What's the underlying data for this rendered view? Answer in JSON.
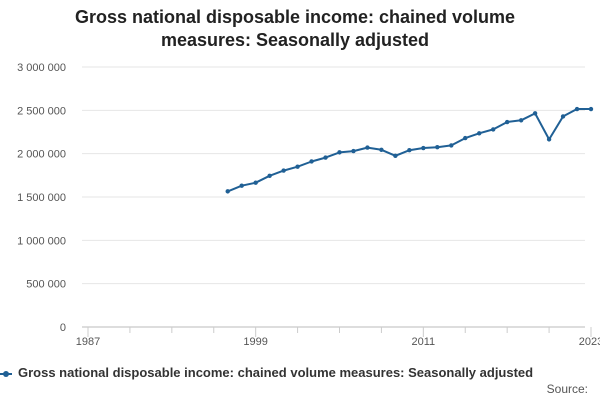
{
  "chart_data": {
    "type": "line",
    "title": "Gross national disposable income: chained volume measures: Seasonally adjusted",
    "title_lines": [
      "Gross national disposable income: chained volume",
      "measures: Seasonally adjusted"
    ],
    "xlabel": "",
    "ylabel": "",
    "xlim": [
      1987,
      2023
    ],
    "ylim": [
      0,
      3000000
    ],
    "x_ticks": [
      1987,
      1999,
      2011,
      2023
    ],
    "x_tick_labels": [
      "1987",
      "1999",
      "2011",
      "2023"
    ],
    "y_ticks": [
      0,
      500000,
      1000000,
      1500000,
      2000000,
      2500000,
      3000000
    ],
    "y_tick_labels": [
      "0",
      "500 000",
      "1 000 000",
      "1 500 000",
      "2 000 000",
      "2 500 000",
      "3 000 000"
    ],
    "grid": true,
    "legend": "bottom",
    "series": [
      {
        "name": "Gross national disposable income: chained volume measures: Seasonally adjusted",
        "color": "#206095",
        "x": [
          1997,
          1998,
          1999,
          2000,
          2001,
          2002,
          2003,
          2004,
          2005,
          2006,
          2007,
          2008,
          2009,
          2010,
          2011,
          2012,
          2013,
          2014,
          2015,
          2016,
          2017,
          2018,
          2019,
          2020,
          2021,
          2022,
          2023
        ],
        "values": [
          1565000,
          1630000,
          1665000,
          1745000,
          1805000,
          1850000,
          1910000,
          1955000,
          2015000,
          2030000,
          2070000,
          2045000,
          1975000,
          2040000,
          2065000,
          2075000,
          2095000,
          2180000,
          2235000,
          2280000,
          2365000,
          2385000,
          2465000,
          2165000,
          2430000,
          2515000,
          2515000
        ]
      }
    ]
  },
  "legend": {
    "label": "Gross national disposable income: chained volume measures: Seasonally adjusted"
  },
  "source": {
    "label": "Source:"
  }
}
